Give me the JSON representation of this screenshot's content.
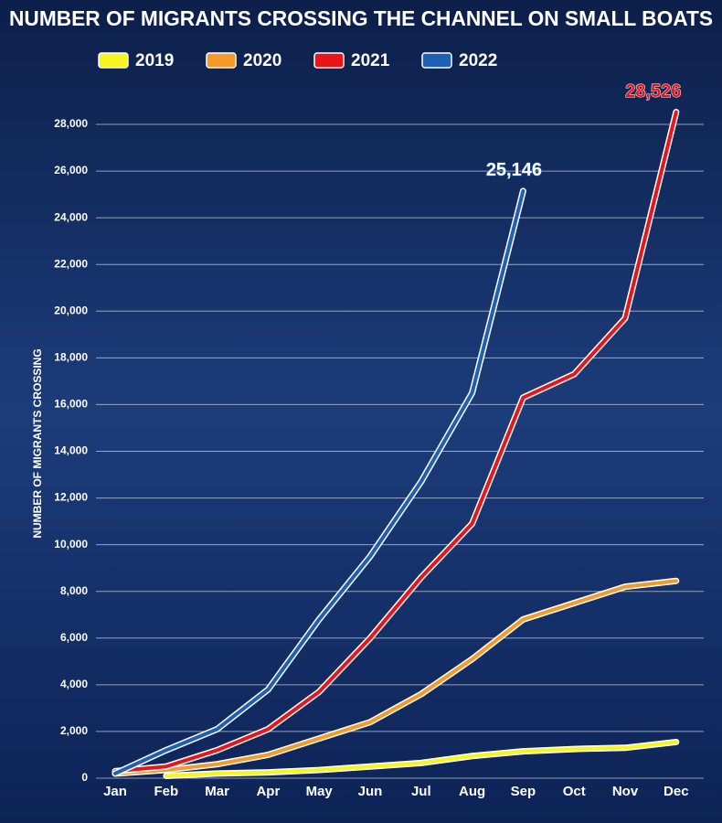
{
  "chart_data": {
    "type": "line",
    "title": "NUMBER OF MIGRANTS CROSSING THE CHANNEL ON SMALL BOATS",
    "y_label": "NUMBER OF MIGRANTS CROSSING",
    "categories": [
      "Jan",
      "Feb",
      "Mar",
      "Apr",
      "May",
      "Jun",
      "Jul",
      "Aug",
      "Sep",
      "Oct",
      "Nov",
      "Dec"
    ],
    "series": [
      {
        "name": "2019",
        "color": "#f5f520",
        "values": [
          null,
          100,
          200,
          250,
          350,
          500,
          650,
          950,
          1150,
          1250,
          1300,
          1550
        ]
      },
      {
        "name": "2020",
        "color": "#f39a2b",
        "values": [
          200,
          350,
          600,
          1000,
          1700,
          2400,
          3600,
          5100,
          6800,
          7500,
          8200,
          8450
        ]
      },
      {
        "name": "2021",
        "color": "#e8161b",
        "values": [
          300,
          500,
          1200,
          2100,
          3700,
          6000,
          8600,
          10900,
          16300,
          17300,
          19700,
          28526
        ],
        "value_labels": [
          null,
          null,
          null,
          null,
          null,
          null,
          null,
          null,
          null,
          null,
          null,
          "28,526"
        ]
      },
      {
        "name": "2022",
        "color": "#1f5fb4",
        "values": [
          200,
          1200,
          2100,
          3800,
          6800,
          9500,
          12700,
          16500,
          25146,
          null,
          null,
          null
        ],
        "value_labels": [
          null,
          null,
          null,
          null,
          null,
          null,
          null,
          null,
          "25,146",
          null,
          null,
          null
        ]
      }
    ],
    "ylim": [
      0,
      28000
    ],
    "yticks": [
      0,
      {
        "value": 2000,
        "label": "2,000"
      },
      {
        "value": 4000,
        "label": "4,000"
      },
      {
        "value": 6000,
        "label": "6,000"
      },
      {
        "value": 8000,
        "label": "8,000"
      },
      {
        "value": 10000,
        "label": "10,000"
      },
      {
        "value": 12000,
        "label": "12,000"
      },
      {
        "value": 14000,
        "label": "14,000"
      },
      {
        "value": 16000,
        "label": "16,000"
      },
      {
        "value": 18000,
        "label": "18,000"
      },
      {
        "value": 20000,
        "label": "20,000"
      },
      {
        "value": 22000,
        "label": "22,000"
      },
      {
        "value": 24000,
        "label": "24,000"
      },
      {
        "value": 26000,
        "label": "26,000"
      },
      {
        "value": 28000,
        "label": "28,000"
      }
    ],
    "grid": true
  }
}
